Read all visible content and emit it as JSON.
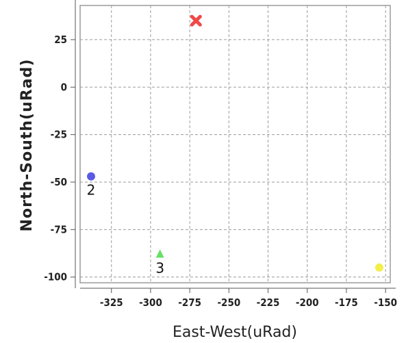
{
  "chart_data": {
    "type": "scatter",
    "title": "",
    "xlabel": "East-West(uRad)",
    "ylabel": "North-South(uRad)",
    "xlim": [
      -345,
      -147
    ],
    "ylim": [
      -103,
      43
    ],
    "xticks": [
      -325,
      -300,
      -275,
      -250,
      -225,
      -200,
      -175,
      -150
    ],
    "yticks": [
      25,
      0,
      -25,
      -50,
      -75,
      -100
    ],
    "grid": true,
    "points": [
      {
        "label": "",
        "x": -271,
        "y": 35,
        "marker": "x",
        "color": "#f04848"
      },
      {
        "label": "2",
        "x": -338,
        "y": -47,
        "marker": "circle",
        "color": "#5a5ae6"
      },
      {
        "label": "3",
        "x": -294,
        "y": -88,
        "marker": "triangle",
        "color": "#66e066"
      },
      {
        "label": "",
        "x": -154,
        "y": -95,
        "marker": "circle",
        "color": "#f2ee4a"
      }
    ]
  }
}
